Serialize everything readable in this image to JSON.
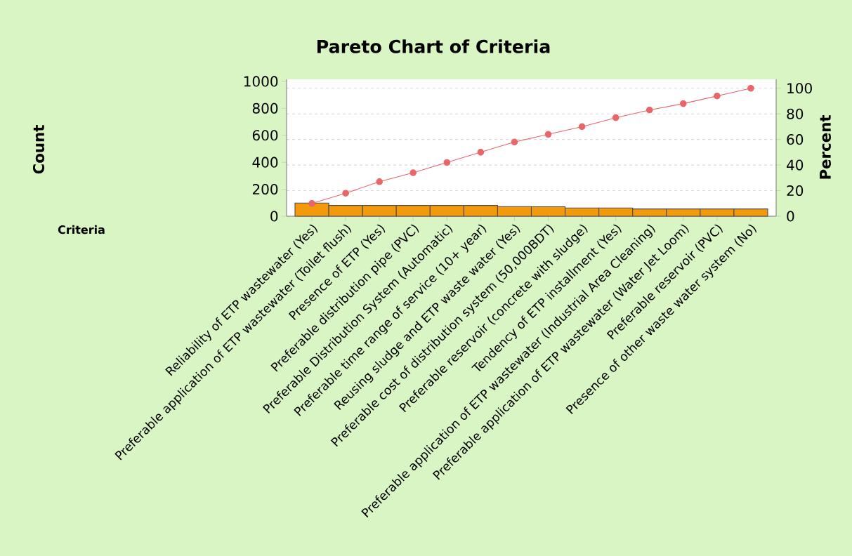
{
  "chart_data": {
    "type": "bar",
    "title": "Pareto Chart of Criteria",
    "xlabel": "Criteria",
    "ylabel": "Count",
    "y2label": "Percent",
    "categories": [
      "Reliability of ETP wastewater (Yes)",
      "Preferable application of ETP wastewater (Toilet flush)",
      "Presence of ETP (Yes)",
      "Preferable distribution pipe (PVC)",
      "Preferable Distribution System (Automatic)",
      "Preferable time range of service (10+ year)",
      "Reusing sludge and ETP waste water (Yes)",
      "Preferable cost of distribution system (50,000BDT)",
      "Preferable reservoir (concrete with sludge)",
      "Tendency of ETP installment (Yes)",
      "Preferable application of ETP wastewater (Industrial Area Cleaning)",
      "Preferable application of ETP wastewater (Water Jet Loom)",
      "Preferable reservoir (PVC)",
      "Presence of other waste water system (No)"
    ],
    "series": [
      {
        "color": "#f39a0c",
        "values": [
          98,
          80,
          80,
          80,
          80,
          80,
          72,
          70,
          61,
          61,
          54,
          54,
          54,
          54
        ]
      },
      {
        "type": "line",
        "axis": "y2",
        "color": "#e8656a",
        "marker": "circle",
        "line_style": "solid",
        "values": [
          10,
          18,
          27,
          34,
          42,
          50,
          58,
          64,
          70,
          77,
          83,
          88,
          94,
          100
        ]
      }
    ],
    "ylim": [
      0,
      1015
    ],
    "yticks": [
      0,
      200,
      400,
      600,
      800,
      1000
    ],
    "y2lim": [
      0,
      107
    ],
    "y2ticks": [
      0,
      20,
      40,
      60,
      80,
      100
    ],
    "grid": true
  }
}
